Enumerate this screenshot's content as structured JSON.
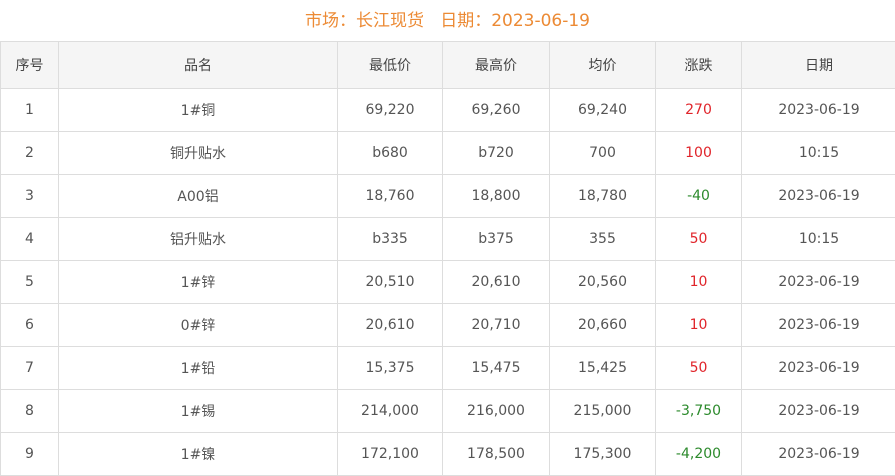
{
  "title": {
    "market_label": "市场：",
    "market": "长江现货",
    "date_label": "日期：",
    "date": "2023-06-19"
  },
  "colors": {
    "title": "#ec8a34",
    "up": "#e0242a",
    "down": "#2c8a2c"
  },
  "headers": [
    "序号",
    "品名",
    "最低价",
    "最高价",
    "均价",
    "涨跌",
    "日期"
  ],
  "rows": [
    {
      "no": "1",
      "name": "1#铜",
      "low": "69,220",
      "high": "69,260",
      "avg": "69,240",
      "change": "270",
      "dir": "up",
      "date": "2023-06-19"
    },
    {
      "no": "2",
      "name": "铜升贴水",
      "low": "b680",
      "high": "b720",
      "avg": "700",
      "change": "100",
      "dir": "up",
      "date": "10:15"
    },
    {
      "no": "3",
      "name": "A00铝",
      "low": "18,760",
      "high": "18,800",
      "avg": "18,780",
      "change": "-40",
      "dir": "down",
      "date": "2023-06-19"
    },
    {
      "no": "4",
      "name": "铝升贴水",
      "low": "b335",
      "high": "b375",
      "avg": "355",
      "change": "50",
      "dir": "up",
      "date": "10:15"
    },
    {
      "no": "5",
      "name": "1#锌",
      "low": "20,510",
      "high": "20,610",
      "avg": "20,560",
      "change": "10",
      "dir": "up",
      "date": "2023-06-19"
    },
    {
      "no": "6",
      "name": "0#锌",
      "low": "20,610",
      "high": "20,710",
      "avg": "20,660",
      "change": "10",
      "dir": "up",
      "date": "2023-06-19"
    },
    {
      "no": "7",
      "name": "1#铅",
      "low": "15,375",
      "high": "15,475",
      "avg": "15,425",
      "change": "50",
      "dir": "up",
      "date": "2023-06-19"
    },
    {
      "no": "8",
      "name": "1#锡",
      "low": "214,000",
      "high": "216,000",
      "avg": "215,000",
      "change": "-3,750",
      "dir": "down",
      "date": "2023-06-19"
    },
    {
      "no": "9",
      "name": "1#镍",
      "low": "172,100",
      "high": "178,500",
      "avg": "175,300",
      "change": "-4,200",
      "dir": "down",
      "date": "2023-06-19"
    }
  ]
}
